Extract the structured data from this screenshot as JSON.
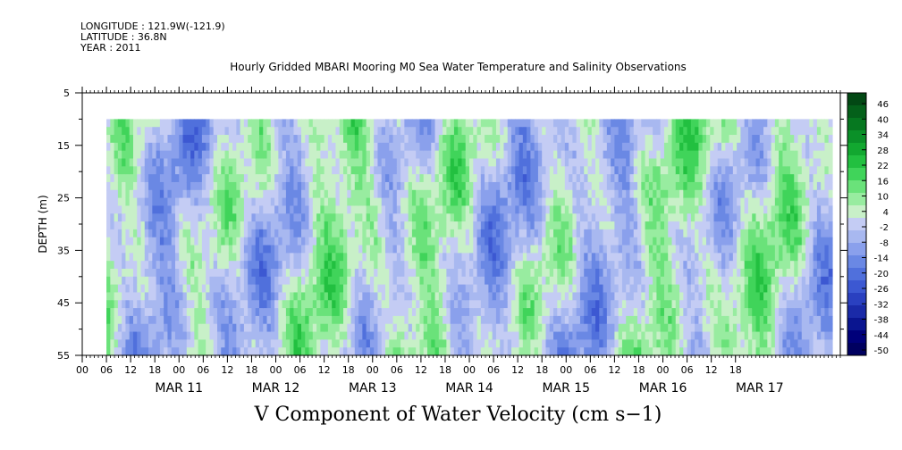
{
  "header": {
    "longitude": "LONGITUDE : 121.9W(-121.9)",
    "latitude": "LATITUDE : 36.8N",
    "year": "YEAR : 2011"
  },
  "chart_data": {
    "type": "heatmap",
    "title": "Hourly Gridded MBARI Mooring M0 Sea Water Temperature and Salinity Observations",
    "xlabel": "V Component of Water Velocity (cm s−1)",
    "ylabel": "DEPTH (m)",
    "ylim": [
      55,
      5
    ],
    "y_reversed": true,
    "y_ticks": [
      5,
      15,
      25,
      35,
      45,
      55
    ],
    "x_range": [
      "2011-03-10T00:00",
      "2011-03-17T20:00"
    ],
    "x_hour_ticks": [
      "00",
      "06",
      "12",
      "18",
      "00",
      "06",
      "12",
      "18",
      "00",
      "06",
      "12",
      "18",
      "00",
      "06",
      "12",
      "18",
      "00",
      "06",
      "12",
      "18",
      "00",
      "06",
      "12",
      "18",
      "00",
      "06",
      "12",
      "18"
    ],
    "x_day_labels": [
      "MAR 11",
      "MAR 12",
      "MAR 13",
      "MAR 14",
      "MAR 15",
      "MAR 16",
      "MAR 17"
    ],
    "data_extent": {
      "x_start": "2011-03-10T06:00",
      "x_end": "2011-03-17T18:00",
      "depth_top": 10,
      "depth_bottom": 55
    },
    "colorbar": {
      "ticks": [
        46,
        40,
        34,
        28,
        22,
        16,
        10,
        4,
        -2,
        -8,
        -14,
        -20,
        -26,
        -32,
        -38,
        -44,
        -50
      ],
      "range": [
        -50,
        50
      ],
      "colors": [
        "#000060",
        "#00007a",
        "#0a1590",
        "#1a2aa8",
        "#2a40c0",
        "#3c58d2",
        "#5070dc",
        "#6a88e4",
        "#8aa0ec",
        "#a8b8f0",
        "#c4ccf4",
        "#c8f0c8",
        "#98eca0",
        "#6ae27a",
        "#40d45a",
        "#22c040",
        "#12a830",
        "#0a9028",
        "#067820",
        "#04601a",
        "#024814"
      ]
    },
    "values_depth_profile_mid": [
      {
        "depth": 15,
        "v": 8
      },
      {
        "depth": 25,
        "v": 2
      },
      {
        "depth": 35,
        "v": -4
      },
      {
        "depth": 45,
        "v": 4
      }
    ]
  }
}
